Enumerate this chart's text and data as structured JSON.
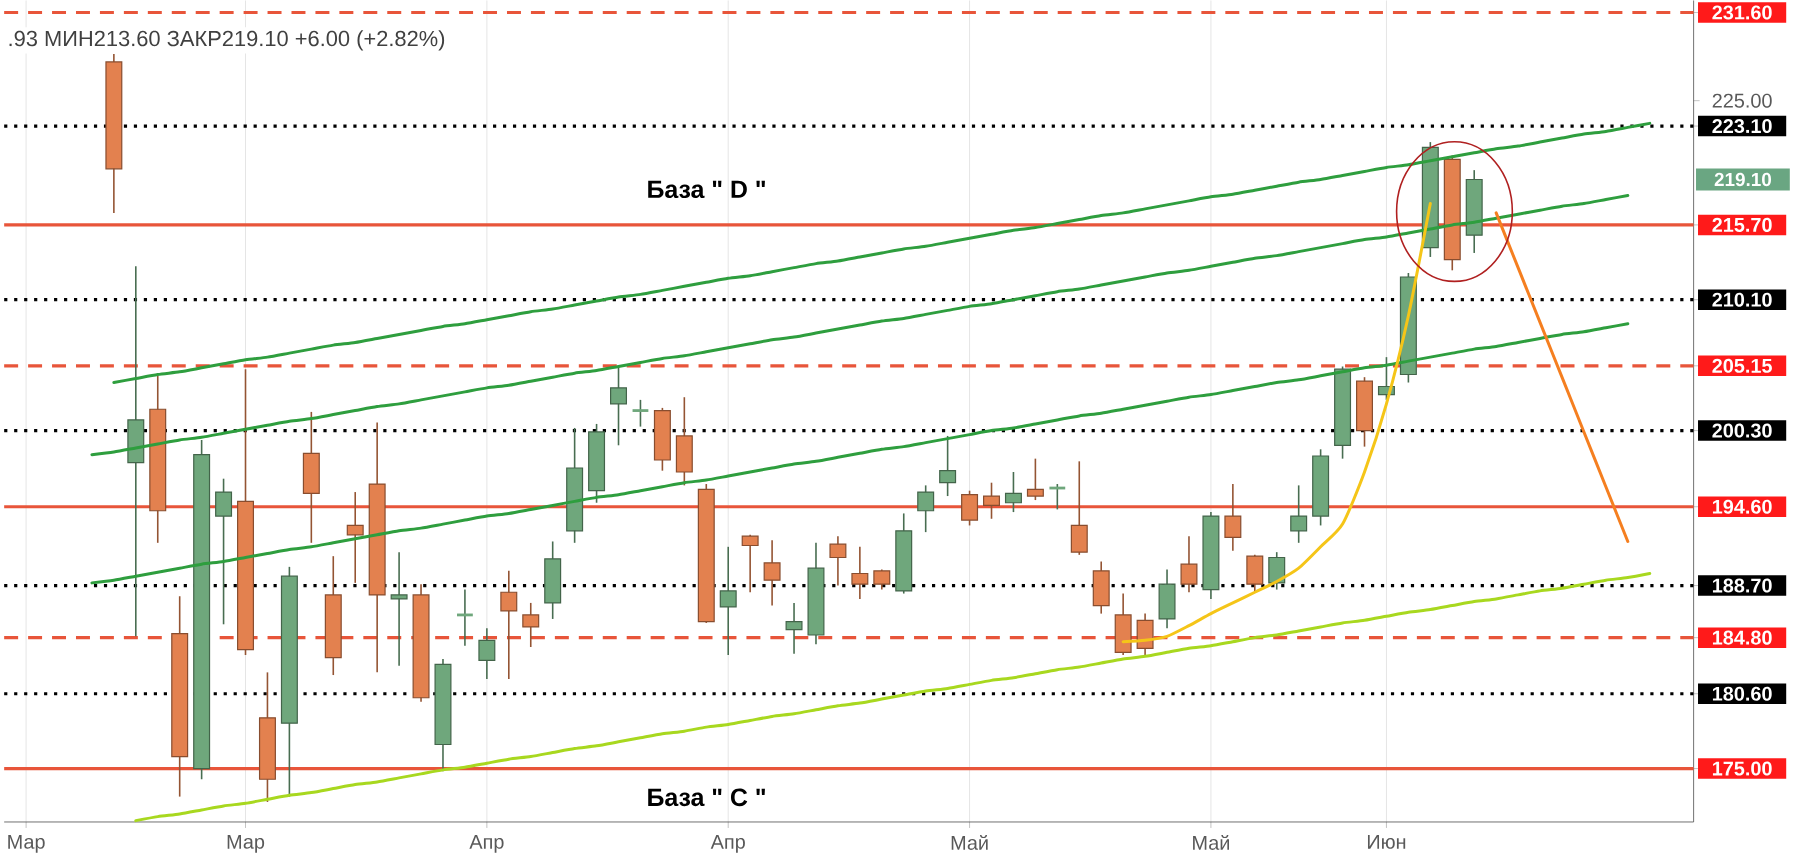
{
  "chart_data": {
    "type": "candlestick",
    "categories": [
      "Мар",
      null,
      null,
      null,
      null,
      null,
      null,
      null,
      null,
      null,
      "Мар",
      null,
      null,
      null,
      null,
      null,
      null,
      null,
      null,
      null,
      null,
      "Апр",
      null,
      null,
      null,
      null,
      null,
      null,
      null,
      null,
      null,
      null,
      "Апр",
      null,
      null,
      null,
      null,
      null,
      null,
      null,
      null,
      null,
      null,
      "Май",
      null,
      null,
      null,
      null,
      null,
      null,
      null,
      null,
      null,
      null,
      "Май",
      null,
      null,
      null,
      null,
      null,
      null,
      null,
      "Июн",
      null,
      null,
      null,
      null,
      null,
      null,
      null,
      null,
      null,
      null,
      null,
      null,
      null,
      null
    ],
    "ohlc": [
      null,
      null,
      null,
      null,
      [
        227.9,
        228.5,
        216.6,
        219.9
      ],
      [
        197.9,
        212.6,
        184.9,
        201.1
      ],
      [
        201.9,
        204.4,
        191.9,
        194.3
      ],
      [
        185.1,
        187.9,
        172.9,
        175.9
      ],
      [
        175.0,
        199.6,
        174.2,
        198.5
      ],
      [
        193.9,
        196.7,
        185.8,
        195.7
      ],
      [
        195.0,
        204.9,
        183.5,
        183.9
      ],
      [
        178.8,
        182.2,
        172.5,
        174.2
      ],
      [
        178.4,
        190.1,
        172.9,
        189.4
      ],
      [
        198.6,
        201.7,
        191.9,
        195.6
      ],
      [
        188.0,
        190.9,
        182.0,
        183.3
      ],
      [
        193.2,
        195.7,
        188.9,
        192.5
      ],
      [
        196.3,
        200.9,
        182.2,
        188.0
      ],
      [
        187.7,
        191.2,
        182.7,
        188.0
      ],
      [
        188.0,
        188.8,
        180.0,
        180.3
      ],
      [
        176.8,
        183.2,
        174.8,
        182.8
      ],
      [
        186.5,
        188.4,
        184.2,
        186.5
      ],
      [
        183.1,
        185.5,
        181.7,
        184.6
      ],
      [
        188.2,
        189.8,
        181.7,
        186.8
      ],
      [
        186.5,
        187.4,
        184.1,
        185.6
      ],
      [
        187.4,
        192.0,
        186.2,
        190.7
      ],
      [
        192.8,
        200.5,
        191.9,
        197.5
      ],
      [
        195.8,
        200.8,
        194.9,
        200.2
      ],
      [
        202.3,
        205.1,
        199.2,
        203.5
      ],
      [
        201.8,
        202.6,
        200.6,
        201.8
      ],
      [
        201.8,
        202.0,
        197.3,
        198.1
      ],
      [
        199.9,
        202.8,
        196.2,
        197.2
      ],
      [
        195.9,
        196.3,
        185.9,
        186.0
      ],
      [
        187.1,
        191.6,
        183.5,
        188.3
      ],
      [
        192.4,
        192.5,
        188.2,
        191.7
      ],
      [
        190.4,
        192.1,
        187.2,
        189.1
      ],
      [
        185.4,
        187.4,
        183.6,
        186.0
      ],
      [
        185.0,
        191.9,
        184.3,
        190.0
      ],
      [
        191.8,
        192.4,
        188.7,
        190.8
      ],
      [
        189.6,
        191.6,
        187.7,
        188.8
      ],
      [
        189.8,
        189.9,
        188.4,
        188.8
      ],
      [
        188.3,
        194.1,
        188.1,
        192.8
      ],
      [
        194.3,
        196.2,
        192.7,
        195.7
      ],
      [
        196.4,
        199.9,
        195.4,
        197.3
      ],
      [
        195.5,
        195.8,
        193.2,
        193.6
      ],
      [
        195.4,
        196.4,
        193.7,
        194.7
      ],
      [
        194.9,
        197.2,
        194.2,
        195.6
      ],
      [
        195.9,
        198.2,
        195.1,
        195.4
      ],
      [
        196.0,
        196.3,
        194.4,
        196.0
      ],
      [
        193.2,
        198.0,
        191.0,
        191.2
      ],
      [
        189.8,
        190.5,
        186.6,
        187.2
      ],
      [
        186.5,
        188.1,
        183.5,
        183.7
      ],
      [
        186.1,
        186.6,
        183.5,
        184.0
      ],
      [
        186.2,
        189.9,
        185.5,
        188.8
      ],
      [
        190.3,
        192.4,
        188.2,
        188.8
      ],
      [
        188.4,
        194.2,
        187.7,
        193.9
      ],
      [
        193.9,
        196.3,
        191.3,
        192.3
      ],
      [
        190.9,
        191.0,
        188.2,
        188.8
      ],
      [
        188.9,
        191.2,
        188.4,
        190.8
      ],
      [
        192.8,
        196.2,
        191.9,
        193.9
      ],
      [
        193.9,
        198.9,
        193.2,
        198.4
      ],
      [
        199.2,
        205.1,
        198.2,
        204.9
      ],
      [
        204.0,
        204.3,
        199.1,
        200.3
      ],
      [
        203.0,
        205.8,
        202.6,
        203.6
      ],
      [
        204.5,
        212.1,
        203.9,
        211.8
      ],
      [
        214.0,
        221.9,
        213.3,
        221.5
      ],
      [
        220.6,
        220.9,
        212.3,
        213.1
      ],
      [
        214.93,
        219.8,
        213.6,
        219.1
      ],
      null,
      null,
      null,
      null,
      null,
      null,
      null,
      null,
      null,
      null
    ],
    "colors": [
      null,
      null,
      null,
      null,
      "#e3814f",
      "#6fa77c",
      "#e3814f",
      "#e3814f",
      "#6fa77c",
      "#6fa77c",
      "#e3814f",
      "#e3814f",
      "#6fa77c",
      "#e3814f",
      "#e3814f",
      "#e3814f",
      "#e3814f",
      "#6fa77c",
      "#e3814f",
      "#6fa77c",
      "#6fa77c",
      "#6fa77c",
      "#e3814f",
      "#e3814f",
      "#6fa77c",
      "#6fa77c",
      "#6fa77c",
      "#6fa77c",
      "#6fa77c",
      "#e3814f",
      "#e3814f",
      "#e3814f",
      "#6fa77c",
      "#e3814f",
      "#e3814f",
      "#6fa77c",
      "#6fa77c",
      "#e3814f",
      "#e3814f",
      "#e3814f",
      "#6fa77c",
      "#6fa77c",
      "#6fa77c",
      "#e3814f",
      "#e3814f",
      "#6fa77c",
      "#e3814f",
      "#6fa77c",
      "#e3814f",
      "#e3814f",
      "#e3814f",
      "#e3814f",
      "#6fa77c",
      "#e3814f",
      "#6fa77c",
      "#e3814f",
      "#e3814f",
      "#6fa77c",
      "#6fa77c",
      "#6fa77c",
      "#6fa77c",
      "#e3814f",
      "#6fa77c",
      "#6fa77c",
      "#6fa77c",
      "#e3814f",
      "#6fa77c",
      null,
      null,
      null,
      null,
      null,
      null,
      null,
      null,
      null,
      null
    ],
    "series": [
      {
        "type": "line",
        "color": "#2e9e3e",
        "values": [
          null,
          null,
          null,
          null,
          203.9,
          204.2,
          204.5,
          204.7,
          205.0,
          205.3,
          205.6,
          205.8,
          206.1,
          206.4,
          206.7,
          206.9,
          207.2,
          207.5,
          207.8,
          208.1,
          208.3,
          208.6,
          208.9,
          209.2,
          209.4,
          209.7,
          210.0,
          210.3,
          210.5,
          210.8,
          211.1,
          211.4,
          211.7,
          211.9,
          212.2,
          212.5,
          212.8,
          213.0,
          213.3,
          213.6,
          213.9,
          214.1,
          214.4,
          214.7,
          215.0,
          215.3,
          215.5,
          215.8,
          216.1,
          216.4,
          216.6,
          216.9,
          217.2,
          217.5,
          217.8,
          218.0,
          218.3,
          218.6,
          218.9,
          219.1,
          219.4,
          219.7,
          220.0,
          220.2,
          220.5,
          220.8,
          221.1,
          221.4,
          221.6,
          221.9,
          222.2,
          222.5,
          222.7,
          223.0,
          223.3,
          null,
          null
        ]
      },
      {
        "type": "line",
        "color": "#2e9e3e",
        "values": [
          null,
          null,
          null,
          198.5,
          198.7,
          199.0,
          199.3,
          199.6,
          199.8,
          200.1,
          200.4,
          200.7,
          201.0,
          201.2,
          201.5,
          201.8,
          202.1,
          202.3,
          202.6,
          202.9,
          203.2,
          203.5,
          203.7,
          204.0,
          204.3,
          204.6,
          204.8,
          205.1,
          205.4,
          205.7,
          205.9,
          206.2,
          206.5,
          206.8,
          207.1,
          207.3,
          207.6,
          207.9,
          208.2,
          208.5,
          208.7,
          209.0,
          209.3,
          209.6,
          209.8,
          210.1,
          210.4,
          210.7,
          210.9,
          211.2,
          211.5,
          211.8,
          212.1,
          212.3,
          212.6,
          212.9,
          213.2,
          213.4,
          213.7,
          214.0,
          214.3,
          214.6,
          214.8,
          215.1,
          215.4,
          215.7,
          215.9,
          216.2,
          216.5,
          216.8,
          217.1,
          217.3,
          217.6,
          217.9,
          null,
          null,
          null
        ]
      },
      {
        "type": "line",
        "color": "#2e9e3e",
        "values": [
          null,
          null,
          null,
          188.9,
          189.1,
          189.4,
          189.7,
          190.0,
          190.3,
          190.5,
          190.8,
          191.1,
          191.4,
          191.6,
          191.9,
          192.2,
          192.5,
          192.8,
          193.0,
          193.3,
          193.6,
          193.9,
          194.1,
          194.4,
          194.7,
          195.0,
          195.3,
          195.5,
          195.8,
          196.1,
          196.4,
          196.6,
          196.9,
          197.2,
          197.5,
          197.8,
          198.0,
          198.3,
          198.6,
          198.9,
          199.1,
          199.4,
          199.7,
          200.0,
          200.3,
          200.5,
          200.8,
          201.1,
          201.4,
          201.6,
          201.9,
          202.2,
          202.5,
          202.8,
          203.0,
          203.3,
          203.6,
          203.9,
          204.1,
          204.4,
          204.7,
          205.0,
          205.2,
          205.5,
          205.8,
          206.1,
          206.4,
          206.6,
          206.9,
          207.2,
          207.5,
          207.7,
          208.0,
          208.3,
          null,
          null,
          null
        ]
      },
      {
        "type": "line",
        "color": "#a8d81f",
        "values": [
          null,
          null,
          null,
          null,
          null,
          171.1,
          171.4,
          171.6,
          171.9,
          172.2,
          172.4,
          172.7,
          173.0,
          173.2,
          173.5,
          173.8,
          174.0,
          174.3,
          174.6,
          174.9,
          175.1,
          175.4,
          175.7,
          175.9,
          176.2,
          176.5,
          176.7,
          177.0,
          177.3,
          177.6,
          177.8,
          178.1,
          178.3,
          178.6,
          178.9,
          179.1,
          179.4,
          179.7,
          179.9,
          180.2,
          180.5,
          180.8,
          181.0,
          181.3,
          181.6,
          181.8,
          182.1,
          182.4,
          182.6,
          182.9,
          183.2,
          183.4,
          183.7,
          184.0,
          184.2,
          184.5,
          184.8,
          185.0,
          185.3,
          185.6,
          185.9,
          186.1,
          186.4,
          186.7,
          186.9,
          187.2,
          187.5,
          187.7,
          188.0,
          188.3,
          188.5,
          188.8,
          189.1,
          189.3,
          189.6,
          null,
          null
        ]
      },
      {
        "type": "line",
        "color": "#f5c518",
        "values": [
          null,
          null,
          null,
          null,
          null,
          null,
          null,
          null,
          null,
          null,
          null,
          null,
          null,
          null,
          null,
          null,
          null,
          null,
          null,
          null,
          null,
          null,
          null,
          null,
          null,
          null,
          null,
          null,
          null,
          null,
          null,
          null,
          null,
          null,
          null,
          null,
          null,
          null,
          null,
          null,
          null,
          null,
          null,
          null,
          null,
          null,
          null,
          null,
          null,
          null,
          184.5,
          184.6,
          184.9,
          185.7,
          186.6,
          187.4,
          188.2,
          189.0,
          190.0,
          191.6,
          193.3,
          197.2,
          202.3,
          208.9,
          217.3,
          null,
          null,
          null,
          null,
          null,
          null,
          null,
          null,
          null,
          null,
          null,
          null
        ]
      },
      {
        "type": "line",
        "color": "#f57f20",
        "values": [
          null,
          null,
          null,
          null,
          null,
          null,
          null,
          null,
          null,
          null,
          null,
          null,
          null,
          null,
          null,
          null,
          null,
          null,
          null,
          null,
          null,
          null,
          null,
          null,
          null,
          null,
          null,
          null,
          null,
          null,
          null,
          null,
          null,
          null,
          null,
          null,
          null,
          null,
          null,
          null,
          null,
          null,
          null,
          null,
          null,
          null,
          null,
          null,
          null,
          null,
          null,
          null,
          null,
          null,
          null,
          null,
          null,
          null,
          null,
          null,
          null,
          null,
          null,
          null,
          null,
          null,
          null,
          216.6,
          212.5,
          208.4,
          204.3,
          200.2,
          196.1,
          192.0,
          null,
          null,
          null
        ]
      }
    ],
    "ylim": [
      171.0,
      232.5
    ],
    "yticks": [
      {
        "value": 175.0,
        "label": "175.00"
      },
      {
        "value": 180.6,
        "label": "180.60"
      },
      {
        "value": 184.8,
        "label": "184.80"
      },
      {
        "value": 188.7,
        "label": "188.70"
      },
      {
        "value": 194.6,
        "label": "194.60"
      },
      {
        "value": 200.3,
        "label": "200.30"
      },
      {
        "value": 205.15,
        "label": "205.15"
      },
      {
        "value": 210.1,
        "label": "210.10"
      },
      {
        "value": 215.7,
        "label": "215.70"
      },
      {
        "value": 223.1,
        "label": "223.10"
      },
      {
        "value": 225,
        "label": "225.00"
      },
      {
        "value": 231.6,
        "label": "231.60"
      }
    ],
    "grid": "x",
    "ref_lines": [
      {
        "axis": "y",
        "value": 231.6,
        "color": "#e8553a",
        "line_style": "dashed"
      },
      {
        "axis": "y",
        "value": 223.1,
        "color": "#000000",
        "line_style": "dotted"
      },
      {
        "axis": "y",
        "value": 215.7,
        "color": "#e8553a",
        "line_style": "solid"
      },
      {
        "axis": "y",
        "value": 210.1,
        "color": "#000000",
        "line_style": "dotted"
      },
      {
        "axis": "y",
        "value": 205.15,
        "color": "#e8553a",
        "line_style": "dashed"
      },
      {
        "axis": "y",
        "value": 200.3,
        "color": "#000000",
        "line_style": "dotted"
      },
      {
        "axis": "y",
        "value": 194.6,
        "color": "#e8553a",
        "line_style": "solid"
      },
      {
        "axis": "y",
        "value": 188.7,
        "color": "#000000",
        "line_style": "dotted"
      },
      {
        "axis": "y",
        "value": 184.8,
        "color": "#e8553a",
        "line_style": "dashed"
      },
      {
        "axis": "y",
        "value": 180.6,
        "color": "#000000",
        "line_style": "dotted"
      },
      {
        "axis": "y",
        "value": 175.0,
        "color": "#e8553a",
        "line_style": "solid"
      }
    ],
    "annotations": [
      ".93 МИН213.60 ЗАКР219.10 +6.00 (+2.82%)",
      "База \" D \"",
      "База \" C \"",
      "219.10"
    ]
  }
}
